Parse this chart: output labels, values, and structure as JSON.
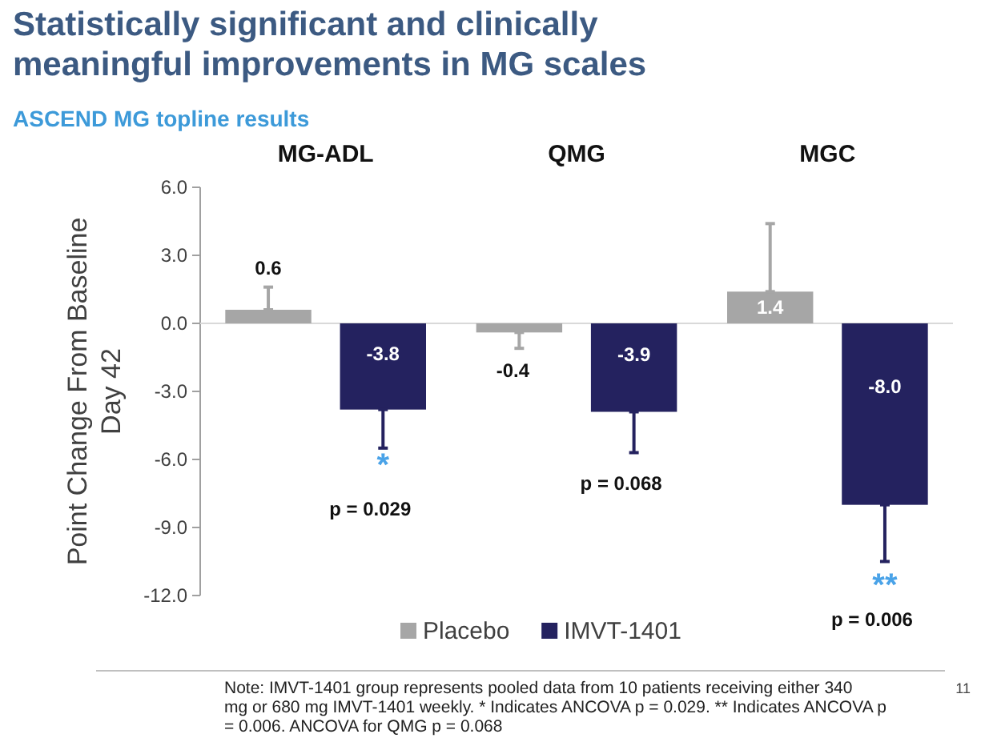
{
  "chart_data": {
    "type": "bar",
    "title": "Statistically significant and clinically meaningful improvements in MG scales",
    "subtitle": "ASCEND MG topline results",
    "ylabel": "Point Change From Baseline\nDay 42",
    "categories": [
      "MG-ADL",
      "QMG",
      "MGC"
    ],
    "series": [
      {
        "name": "Placebo",
        "color": "#a6a6a6",
        "values": [
          0.6,
          -0.4,
          1.4
        ],
        "value_labels": [
          "0.6",
          "-0.4",
          "1.4"
        ],
        "errors": [
          [
            0.6,
            1.6
          ],
          [
            -1.1,
            -0.4
          ],
          [
            1.4,
            4.4
          ]
        ]
      },
      {
        "name": "IMVT-1401",
        "color": "#24225f",
        "values": [
          -3.8,
          -3.9,
          -8.0
        ],
        "value_labels": [
          "-3.8",
          "-3.9",
          "-8.0"
        ],
        "errors": [
          [
            -5.5,
            -3.8
          ],
          [
            -5.7,
            -3.9
          ],
          [
            -10.5,
            -8.0
          ]
        ]
      }
    ],
    "ylim": [
      -12,
      6
    ],
    "yticks": [
      {
        "value": 6,
        "label": "6.0"
      },
      {
        "value": 3,
        "label": "3.0"
      },
      {
        "value": 0,
        "label": "0.0"
      },
      {
        "value": -3,
        "label": "-3.0"
      },
      {
        "value": -6,
        "label": "-6.0"
      },
      {
        "value": -9,
        "label": "-9.0"
      },
      {
        "value": -12,
        "label": "-12.0"
      }
    ],
    "legend": "bottom",
    "annotations": [
      "*",
      "p = 0.029",
      "p = 0.068",
      "**",
      "p = 0.006",
      "Note: IMVT-1401 group represents pooled data from 10 patients receiving either 340 mg or 680 mg IMVT-1401 weekly.  * Indicates ANCOVA p = 0.029.  ** Indicates ANCOVA p = 0.006.  ANCOVA for QMG p = 0.068",
      "11"
    ]
  }
}
